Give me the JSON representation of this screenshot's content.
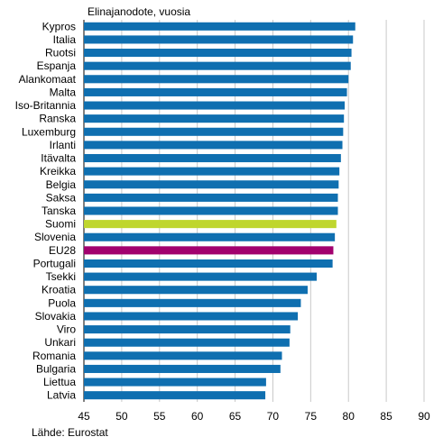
{
  "chart_data": {
    "type": "bar",
    "orientation": "horizontal",
    "title": "Elinajanodote, vuosia",
    "source": "Lähde: Eurostat",
    "xlim": [
      45,
      90
    ],
    "xticks": [
      45,
      50,
      55,
      60,
      65,
      70,
      75,
      80,
      85,
      90
    ],
    "grid": true,
    "colors": {
      "default": "#0f6fb0",
      "highlight_suomi": "#bfd62e",
      "highlight_eu": "#a2006e",
      "grid": "#c8c8c8"
    },
    "categories": [
      "Kypros",
      "Italia",
      "Ruotsi",
      "Espanja",
      "Alankomaat",
      "Malta",
      "Iso-Britannia",
      "Ranska",
      "Luxemburg",
      "Irlanti",
      "Itävalta",
      "Kreikka",
      "Belgia",
      "Saksa",
      "Tanska",
      "Suomi",
      "Slovenia",
      "EU28",
      "Portugali",
      "Tsekki",
      "Kroatia",
      "Puola",
      "Slovakia",
      "Viro",
      "Unkari",
      "Romania",
      "Bulgaria",
      "Liettua",
      "Latvia"
    ],
    "values": [
      80.9,
      80.6,
      80.4,
      80.3,
      80.0,
      79.8,
      79.5,
      79.4,
      79.3,
      79.2,
      79.0,
      78.8,
      78.7,
      78.6,
      78.6,
      78.4,
      78.2,
      78.0,
      77.9,
      75.8,
      74.6,
      73.7,
      73.3,
      72.3,
      72.2,
      71.2,
      71.0,
      69.1,
      69.0
    ],
    "highlight": {
      "Suomi": "highlight_suomi",
      "EU28": "highlight_eu"
    }
  }
}
